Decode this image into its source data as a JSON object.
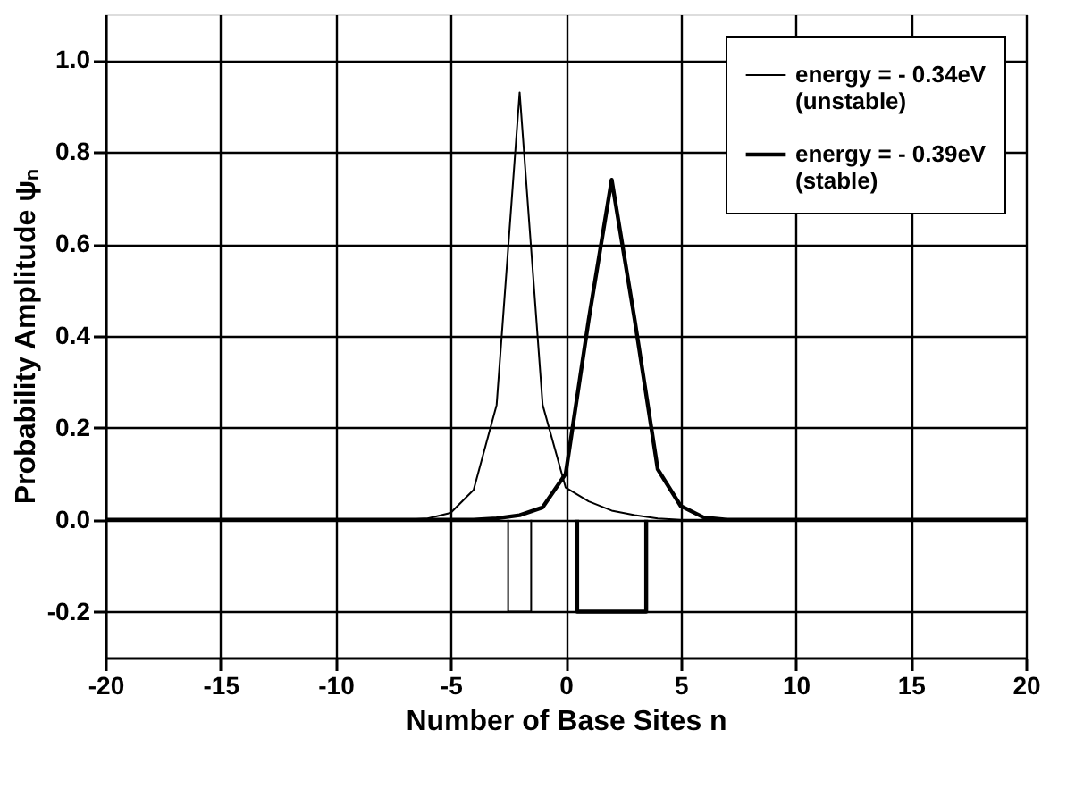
{
  "chart_data": {
    "type": "line",
    "xlabel": "Number of Base Sites n",
    "ylabel": "Probability Amplitude ψₙ",
    "xlim": [
      -20,
      20
    ],
    "ylim": [
      -0.3,
      1.1
    ],
    "xticks": [
      -20,
      -15,
      -10,
      -5,
      0,
      5,
      10,
      15,
      20
    ],
    "yticks": [
      {
        "value": -0.2,
        "label": "-0.2"
      },
      {
        "value": 0,
        "label": "0.0"
      },
      0.2,
      0.4,
      0.6,
      0.8,
      {
        "value": 1.0,
        "label": "1.0"
      }
    ],
    "grid": true,
    "legend": "top right",
    "marker": "none",
    "line_style": "solid",
    "series": [
      {
        "name": "energy = - 0.34eV\n(unstable)",
        "color": "#000000",
        "x": [
          -20,
          -7,
          -6,
          -5,
          -4,
          -3,
          -2,
          -1,
          0,
          1,
          2,
          3,
          4,
          5,
          6,
          7,
          20
        ],
        "values": [
          0,
          0,
          0.003,
          0.015,
          0.065,
          0.25,
          0.93,
          0.25,
          0.07,
          0.04,
          0.02,
          0.01,
          0.003,
          0,
          0,
          0,
          0
        ]
      },
      {
        "name": "energy = - 0.39eV\n(stable)",
        "color": "#000000",
        "x": [
          -20,
          -7,
          -6,
          -5,
          -4,
          -3,
          -2,
          -1,
          0,
          1,
          2,
          3,
          4,
          5,
          6,
          7,
          20
        ],
        "values": [
          0,
          0,
          0,
          0,
          0,
          0.003,
          0.01,
          0.027,
          0.1,
          0.435,
          0.74,
          0.435,
          0.11,
          0.03,
          0.005,
          0,
          0
        ]
      },
      {
        "color": "#000000",
        "x": [
          -2.5,
          -2.5,
          -1.5,
          -1.5
        ],
        "values": [
          0,
          -0.2,
          -0.2,
          0
        ]
      },
      {
        "color": "#000000",
        "x": [
          0.5,
          0.5,
          3.5,
          3.5
        ],
        "values": [
          0,
          -0.2,
          -0.2,
          0
        ]
      }
    ]
  }
}
